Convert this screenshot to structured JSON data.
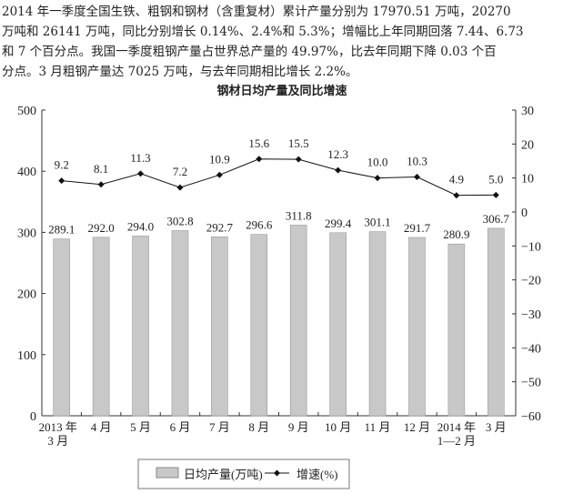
{
  "paragraph": {
    "lines": [
      "2014 年一季度全国生铁、粗钢和钢材（含重复材）累计产量分别为 17970.51 万吨，20270",
      "万吨和 26141 万吨，同比分别增长 0.14%、2.4%和 5.3%；增幅比上年同期回落 7.44、6.73",
      "和 7 个百分点。我国一季度粗钢产量占世界总产量的 49.97%，比去年同期下降 0.03 个百",
      "分点。3 月粗钢产量达 7025 万吨，与去年同期相比增长 2.2%。"
    ]
  },
  "chart_data": {
    "type": "bar+line",
    "title": "钢材日均产量及同比增速",
    "categories": [
      [
        "2013 年",
        "3 月"
      ],
      [
        "4 月"
      ],
      [
        "5 月"
      ],
      [
        "6 月"
      ],
      [
        "7 月"
      ],
      [
        "8 月"
      ],
      [
        "9 月"
      ],
      [
        "10 月"
      ],
      [
        "11 月"
      ],
      [
        "12 月"
      ],
      [
        "2014 年",
        "1—2 月"
      ],
      [
        "3 月"
      ]
    ],
    "series": [
      {
        "name": "日均产量(万吨)",
        "type": "bar",
        "axis": "left",
        "values": [
          289.1,
          292.0,
          294.0,
          302.8,
          292.7,
          296.6,
          311.8,
          299.4,
          301.1,
          291.7,
          280.9,
          306.7
        ],
        "labels": [
          "289.1",
          "292.0",
          "294.0",
          "302.8",
          "292.7",
          "296.6",
          "311.8",
          "299.4",
          "301.1",
          "291.7",
          "280.9",
          "306.7"
        ]
      },
      {
        "name": "增速(%)",
        "type": "line",
        "axis": "right",
        "values": [
          9.2,
          8.1,
          11.3,
          7.2,
          10.9,
          15.6,
          15.5,
          12.3,
          10.0,
          10.3,
          4.9,
          5.0
        ],
        "labels": [
          "9.2",
          "8.1",
          "11.3",
          "7.2",
          "10.9",
          "15.6",
          "15.5",
          "12.3",
          "10.0",
          "10.3",
          "4.9",
          "5.0"
        ]
      }
    ],
    "left_axis": {
      "ylim": [
        0,
        500
      ],
      "ticks": [
        "0",
        "100",
        "200",
        "300",
        "400",
        "500"
      ]
    },
    "right_axis": {
      "ylim": [
        -60,
        30
      ],
      "ticks": [
        "30",
        "20",
        "10",
        "0",
        "-10",
        "-20",
        "-30",
        "-40",
        "-50",
        "-60"
      ]
    },
    "grid": false,
    "legend": "bottom",
    "colors": {
      "bar": "#c8c8c8",
      "line": "#111111"
    }
  }
}
